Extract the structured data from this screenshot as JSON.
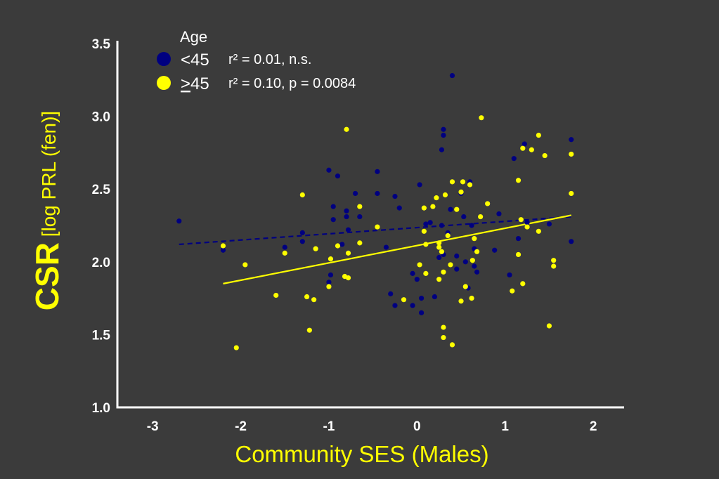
{
  "colors": {
    "background": "#3b3b3b",
    "axis": "#ffffff",
    "tick_label": "#ffffff",
    "title": "#ffff00",
    "under45": "#000080",
    "over45": "#ffff00",
    "legend_text": "#ffffff"
  },
  "chart_data": {
    "type": "scatter",
    "xlabel": "Community SES (Males)",
    "ylabel_main": "CSR",
    "ylabel_sub": "[log PRL (fen)]",
    "xlim": [
      -3.4,
      2.35
    ],
    "ylim": [
      1.0,
      3.5
    ],
    "x_ticks": [
      -3,
      -2,
      -1,
      0,
      1,
      2
    ],
    "x_tick_labels": [
      "-3",
      "-2",
      "-1",
      "0",
      "1",
      "2"
    ],
    "y_ticks": [
      1.0,
      1.5,
      2.0,
      2.5,
      3.0,
      3.5
    ],
    "y_tick_labels": [
      "1.0",
      "1.5",
      "2.0",
      "2.5",
      "3.0",
      "3.5"
    ],
    "grid": false,
    "legend": {
      "title": "Age",
      "placement": "top-left",
      "entries": [
        {
          "label": "<45",
          "stat": "r² = 0.01, n.s."
        },
        {
          "label_symbol": ">",
          "label_number": "45",
          "stat": "r² = 0.10, p = 0.0084"
        }
      ]
    },
    "series": [
      {
        "name": "<45",
        "color": "#000080",
        "line_style": "dashed",
        "fit": {
          "x": [
            -2.7,
            1.75
          ],
          "y": [
            2.12,
            2.31
          ]
        },
        "points": [
          [
            -2.7,
            2.28
          ],
          [
            -2.2,
            2.08
          ],
          [
            -1.5,
            2.1
          ],
          [
            -1.3,
            2.14
          ],
          [
            -1.3,
            2.2
          ],
          [
            -1.0,
            2.63
          ],
          [
            -0.9,
            2.59
          ],
          [
            -0.95,
            2.38
          ],
          [
            -0.95,
            2.29
          ],
          [
            -0.8,
            2.35
          ],
          [
            -0.8,
            2.31
          ],
          [
            -0.78,
            2.22
          ],
          [
            -0.7,
            2.47
          ],
          [
            -0.65,
            2.31
          ],
          [
            -0.45,
            2.62
          ],
          [
            -0.45,
            2.47
          ],
          [
            -0.85,
            2.12
          ],
          [
            -1.0,
            1.86
          ],
          [
            -0.98,
            1.91
          ],
          [
            -0.35,
            2.1
          ],
          [
            -0.25,
            2.45
          ],
          [
            -0.2,
            2.37
          ],
          [
            -0.3,
            1.78
          ],
          [
            -0.25,
            1.7
          ],
          [
            -0.05,
            1.7
          ],
          [
            0.0,
            1.88
          ],
          [
            0.03,
            2.53
          ],
          [
            0.05,
            1.75
          ],
          [
            0.05,
            1.65
          ],
          [
            0.1,
            2.26
          ],
          [
            0.15,
            2.27
          ],
          [
            0.2,
            1.76
          ],
          [
            0.25,
            2.03
          ],
          [
            0.28,
            2.25
          ],
          [
            0.28,
            2.77
          ],
          [
            0.3,
            2.87
          ],
          [
            0.3,
            2.91
          ],
          [
            0.3,
            2.05
          ],
          [
            0.35,
            2.2
          ],
          [
            0.38,
            2.36
          ],
          [
            0.4,
            3.28
          ],
          [
            0.45,
            1.95
          ],
          [
            0.45,
            2.04
          ],
          [
            0.5,
            2.47
          ],
          [
            0.53,
            2.31
          ],
          [
            0.55,
            2.0
          ],
          [
            0.58,
            1.82
          ],
          [
            0.6,
            2.55
          ],
          [
            0.62,
            2.25
          ],
          [
            0.65,
            2.09
          ],
          [
            0.65,
            1.97
          ],
          [
            0.68,
            1.93
          ],
          [
            0.88,
            2.08
          ],
          [
            0.93,
            2.33
          ],
          [
            1.05,
            1.91
          ],
          [
            1.1,
            2.71
          ],
          [
            1.15,
            2.16
          ],
          [
            1.22,
            2.81
          ],
          [
            1.25,
            2.27
          ],
          [
            1.5,
            2.26
          ],
          [
            1.75,
            2.84
          ],
          [
            1.75,
            2.14
          ],
          [
            -0.05,
            1.92
          ]
        ]
      },
      {
        "name": ">45",
        "color": "#ffff00",
        "line_style": "solid",
        "fit": {
          "x": [
            -2.2,
            1.75
          ],
          "y": [
            1.85,
            2.32
          ]
        },
        "points": [
          [
            -2.2,
            2.11
          ],
          [
            -1.95,
            1.98
          ],
          [
            -2.05,
            1.41
          ],
          [
            -1.6,
            1.77
          ],
          [
            -1.5,
            2.06
          ],
          [
            -1.3,
            2.46
          ],
          [
            -1.25,
            1.76
          ],
          [
            -1.22,
            1.53
          ],
          [
            -1.17,
            1.74
          ],
          [
            -1.15,
            2.09
          ],
          [
            -1.0,
            1.83
          ],
          [
            -0.98,
            2.02
          ],
          [
            -0.9,
            2.11
          ],
          [
            -0.82,
            1.9
          ],
          [
            -0.78,
            1.89
          ],
          [
            -0.78,
            2.06
          ],
          [
            -0.65,
            2.38
          ],
          [
            -0.65,
            2.13
          ],
          [
            -0.45,
            2.24
          ],
          [
            -0.8,
            2.91
          ],
          [
            -0.15,
            1.74
          ],
          [
            0.03,
            1.98
          ],
          [
            0.08,
            2.37
          ],
          [
            0.08,
            2.21
          ],
          [
            0.1,
            1.92
          ],
          [
            0.1,
            2.12
          ],
          [
            0.18,
            2.38
          ],
          [
            0.22,
            2.44
          ],
          [
            0.25,
            2.13
          ],
          [
            0.25,
            2.1
          ],
          [
            0.25,
            1.88
          ],
          [
            0.28,
            2.07
          ],
          [
            0.3,
            1.93
          ],
          [
            0.3,
            1.55
          ],
          [
            0.3,
            1.48
          ],
          [
            0.32,
            2.46
          ],
          [
            0.35,
            2.18
          ],
          [
            0.38,
            1.98
          ],
          [
            0.4,
            2.55
          ],
          [
            0.4,
            1.43
          ],
          [
            0.45,
            2.36
          ],
          [
            0.5,
            2.48
          ],
          [
            0.5,
            1.73
          ],
          [
            0.52,
            2.55
          ],
          [
            0.55,
            1.83
          ],
          [
            0.6,
            2.53
          ],
          [
            0.62,
            1.75
          ],
          [
            0.65,
            2.16
          ],
          [
            0.68,
            2.07
          ],
          [
            0.72,
            2.31
          ],
          [
            0.73,
            2.99
          ],
          [
            0.8,
            2.4
          ],
          [
            1.08,
            1.8
          ],
          [
            1.15,
            2.56
          ],
          [
            1.15,
            2.05
          ],
          [
            1.18,
            2.29
          ],
          [
            1.2,
            2.78
          ],
          [
            1.25,
            2.24
          ],
          [
            1.3,
            2.77
          ],
          [
            1.2,
            1.85
          ],
          [
            1.38,
            2.87
          ],
          [
            1.38,
            2.21
          ],
          [
            1.45,
            2.73
          ],
          [
            1.5,
            1.56
          ],
          [
            1.55,
            2.01
          ],
          [
            1.55,
            1.97
          ],
          [
            1.75,
            2.74
          ],
          [
            1.75,
            2.47
          ],
          [
            0.63,
            2.01
          ]
        ]
      }
    ]
  }
}
